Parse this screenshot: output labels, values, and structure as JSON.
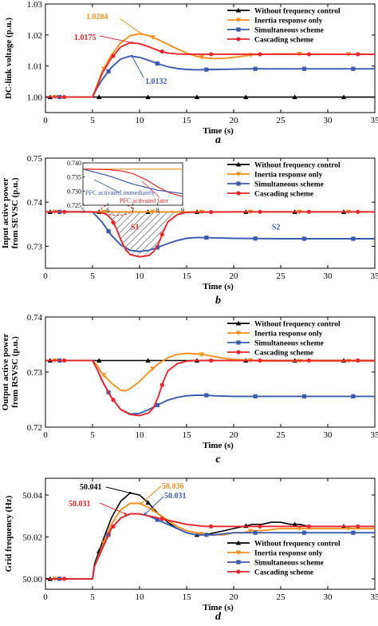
{
  "colors": {
    "without": "#000000",
    "inertia": "#f5901e",
    "simultaneous": "#3a5bb0",
    "cascading": "#e8262a",
    "hatch": "#555555"
  },
  "legend_labels": [
    "Without frequency control",
    "Inertia response only",
    "Simultaneous scheme",
    "Cascading scheme"
  ],
  "chart_data": [
    {
      "panel": "a",
      "type": "line",
      "xlabel": "Time (s)",
      "ylabel": "DC-link voltage (p.u.)",
      "xlim": [
        0,
        35
      ],
      "ylim": [
        0.995,
        1.03
      ],
      "xticks": [
        0,
        5,
        10,
        15,
        20,
        25,
        30,
        35
      ],
      "yticks": [
        1.0,
        1.01,
        1.02,
        1.03
      ],
      "ytick_labels": [
        "1.00",
        "1.01",
        "1.02",
        "1.03"
      ],
      "legend_position": "top-right",
      "annotations": [
        {
          "text": "1.0204",
          "color": "inertia"
        },
        {
          "text": "1.0175",
          "color": "cascading"
        },
        {
          "text": "1.0132",
          "color": "simultaneous"
        }
      ],
      "series": [
        {
          "name": "Without frequency control",
          "color": "without",
          "marker": "triangle-up",
          "x": [
            0,
            5,
            35
          ],
          "y": [
            1.0,
            1.0,
            1.0
          ]
        },
        {
          "name": "Inertia response only",
          "color": "inertia",
          "marker": "triangle-down",
          "x": [
            0,
            5,
            5.5,
            6,
            7,
            8,
            9,
            10,
            11,
            12,
            13,
            14,
            15,
            16,
            17,
            18,
            19,
            20,
            21,
            22,
            23,
            24,
            25,
            27,
            30,
            35
          ],
          "y": [
            1.0,
            1.0,
            1.004,
            1.008,
            1.0135,
            1.0175,
            1.0198,
            1.0204,
            1.0198,
            1.0185,
            1.017,
            1.0155,
            1.0142,
            1.0132,
            1.0126,
            1.0124,
            1.0125,
            1.0128,
            1.0132,
            1.0136,
            1.0138,
            1.0139,
            1.0139,
            1.0139,
            1.0138,
            1.0138
          ]
        },
        {
          "name": "Simultaneous scheme",
          "color": "simultaneous",
          "marker": "square",
          "x": [
            0,
            5,
            5.5,
            6,
            7,
            8,
            9,
            10,
            11,
            12,
            13,
            14,
            15,
            16,
            18,
            20,
            22,
            25,
            30,
            35
          ],
          "y": [
            1.0,
            1.0,
            1.003,
            1.0055,
            1.0095,
            1.0123,
            1.0132,
            1.0128,
            1.0118,
            1.0107,
            1.0098,
            1.0092,
            1.0089,
            1.0088,
            1.0089,
            1.009,
            1.0091,
            1.0091,
            1.0091,
            1.0091
          ]
        },
        {
          "name": "Cascading scheme",
          "color": "cascading",
          "marker": "circle",
          "x": [
            0,
            5,
            5.5,
            6,
            7,
            8,
            9,
            10,
            11,
            12,
            13,
            14,
            15,
            17,
            20,
            25,
            30,
            35
          ],
          "y": [
            1.0,
            1.0,
            1.0035,
            1.0075,
            1.0125,
            1.0162,
            1.0175,
            1.0172,
            1.0162,
            1.015,
            1.0142,
            1.0139,
            1.0138,
            1.0138,
            1.0138,
            1.0138,
            1.0138,
            1.0138
          ]
        }
      ]
    },
    {
      "panel": "b",
      "type": "line",
      "xlabel": "Time (s)",
      "ylabel": "Input active power from SEVSC (p.u.)",
      "ylabel_lines": [
        "Input active power",
        "from SEVSC (p.u.)"
      ],
      "xlim": [
        0,
        35
      ],
      "ylim": [
        0.725,
        0.75
      ],
      "xticks": [
        0,
        5,
        10,
        15,
        20,
        25,
        30,
        35
      ],
      "yticks": [
        0.73,
        0.74,
        0.75
      ],
      "ytick_labels": [
        "0.73",
        "0.74",
        "0.75"
      ],
      "legend_position": "top-right",
      "region_labels": [
        "S1",
        "S2"
      ],
      "inset": {
        "xlim": [
          5,
          9
        ],
        "ylim": [
          0.725,
          0.74
        ],
        "xticks": [
          5,
          6,
          7,
          8,
          9
        ],
        "yticks": [
          0.725,
          0.73,
          0.735,
          0.74
        ],
        "ytick_labels": [
          "0.725",
          "0.730",
          "0.735",
          "0.740"
        ],
        "annotations": [
          {
            "text": "PFC activated immediately",
            "color": "simultaneous"
          },
          {
            "text": "PFC activated later",
            "color": "cascading"
          }
        ]
      },
      "series": [
        {
          "name": "Without frequency control",
          "color": "without",
          "marker": "triangle-up",
          "x": [
            0,
            35
          ],
          "y": [
            0.7378,
            0.7378
          ]
        },
        {
          "name": "Inertia response only",
          "color": "inertia",
          "marker": "triangle-down",
          "x": [
            0,
            35
          ],
          "y": [
            0.7378,
            0.7378
          ]
        },
        {
          "name": "Simultaneous scheme",
          "color": "simultaneous",
          "marker": "square",
          "x": [
            0,
            5,
            6,
            7,
            8,
            9,
            10,
            11,
            12,
            13,
            14,
            15,
            16,
            18,
            20,
            25,
            30,
            35
          ],
          "y": [
            0.7378,
            0.7378,
            0.7355,
            0.7325,
            0.7303,
            0.7291,
            0.7288,
            0.7291,
            0.7298,
            0.7306,
            0.7313,
            0.7318,
            0.732,
            0.7319,
            0.7318,
            0.7317,
            0.7317,
            0.7317
          ]
        },
        {
          "name": "Cascading scheme",
          "color": "cascading",
          "marker": "circle",
          "x": [
            0,
            5,
            6,
            6.5,
            7,
            7.5,
            8,
            8.5,
            9,
            10,
            11,
            11.5,
            12,
            12.5,
            13,
            14,
            15,
            20,
            25,
            30,
            35
          ],
          "y": [
            0.7378,
            0.7378,
            0.7376,
            0.7372,
            0.7362,
            0.7342,
            0.7315,
            0.7293,
            0.7281,
            0.7276,
            0.7279,
            0.7288,
            0.7305,
            0.7332,
            0.7355,
            0.7372,
            0.7377,
            0.7378,
            0.7378,
            0.7378,
            0.7378
          ]
        }
      ]
    },
    {
      "panel": "c",
      "type": "line",
      "xlabel": "Time (s)",
      "ylabel": "Output active power from RSVSC (p.u.)",
      "ylabel_lines": [
        "Output active power",
        "from RSVSC (p.u.)"
      ],
      "xlim": [
        0,
        35
      ],
      "ylim": [
        0.72,
        0.74
      ],
      "xticks": [
        0,
        5,
        10,
        15,
        20,
        25,
        30,
        35
      ],
      "yticks": [
        0.72,
        0.73,
        0.74
      ],
      "ytick_labels": [
        "0.72",
        "0.73",
        "0.74"
      ],
      "legend_position": "top-right",
      "series": [
        {
          "name": "Without frequency control",
          "color": "without",
          "marker": "triangle-up",
          "x": [
            0,
            35
          ],
          "y": [
            0.7321,
            0.7321
          ]
        },
        {
          "name": "Inertia response only",
          "color": "inertia",
          "marker": "triangle-down",
          "x": [
            0,
            5,
            5.5,
            6,
            7,
            8,
            8.5,
            9,
            10,
            11,
            12,
            13,
            14,
            15,
            16,
            17,
            18,
            19,
            20,
            21,
            22,
            23,
            25,
            30,
            35
          ],
          "y": [
            0.7321,
            0.7321,
            0.7312,
            0.7298,
            0.728,
            0.7267,
            0.7266,
            0.727,
            0.7283,
            0.73,
            0.7315,
            0.7326,
            0.7332,
            0.7334,
            0.7333,
            0.7331,
            0.7328,
            0.7325,
            0.7323,
            0.7322,
            0.7321,
            0.732,
            0.732,
            0.732,
            0.732
          ]
        },
        {
          "name": "Simultaneous scheme",
          "color": "simultaneous",
          "marker": "square",
          "x": [
            0,
            5,
            5.5,
            6,
            7,
            8,
            9,
            10,
            11,
            12,
            13,
            14,
            15,
            16,
            17,
            18,
            20,
            25,
            30,
            35
          ],
          "y": [
            0.7321,
            0.7321,
            0.7305,
            0.7285,
            0.7254,
            0.7232,
            0.7224,
            0.7225,
            0.7232,
            0.7241,
            0.7249,
            0.7254,
            0.7257,
            0.7258,
            0.7258,
            0.7257,
            0.7256,
            0.7256,
            0.7256,
            0.7256
          ]
        },
        {
          "name": "Cascading scheme",
          "color": "cascading",
          "marker": "circle",
          "x": [
            0,
            5,
            5.5,
            6,
            7,
            8,
            9,
            10,
            11,
            11.5,
            12,
            12.5,
            13,
            14,
            15,
            16,
            18,
            20,
            25,
            30,
            35
          ],
          "y": [
            0.7321,
            0.7321,
            0.7305,
            0.7285,
            0.7254,
            0.7232,
            0.7223,
            0.7221,
            0.7226,
            0.7236,
            0.7256,
            0.7282,
            0.7302,
            0.7315,
            0.732,
            0.7321,
            0.7321,
            0.7321,
            0.7321,
            0.7321,
            0.7321
          ]
        }
      ]
    },
    {
      "panel": "d",
      "type": "line",
      "xlabel": "Time (s)",
      "ylabel": "Grid frequency (Hz)",
      "xlim": [
        0,
        35
      ],
      "ylim": [
        49.995,
        50.048
      ],
      "xticks": [
        0,
        5,
        10,
        15,
        20,
        25,
        30,
        35
      ],
      "yticks": [
        50.0,
        50.02,
        50.04
      ],
      "ytick_labels": [
        "50.00",
        "50.02",
        "50.04"
      ],
      "legend_position": "bottom-right",
      "annotations": [
        {
          "text": "50.041",
          "color": "without"
        },
        {
          "text": "50.036",
          "color": "inertia"
        },
        {
          "text": "50.031",
          "color": "simultaneous"
        },
        {
          "text": "50.031",
          "color": "cascading"
        }
      ],
      "series": [
        {
          "name": "Without frequency control",
          "color": "without",
          "marker": "triangle-up",
          "x": [
            0,
            5,
            5.2,
            6,
            7,
            8,
            9,
            10,
            11,
            12,
            13,
            14,
            15,
            16,
            17,
            18,
            19,
            20,
            21,
            22,
            23,
            24,
            25,
            26,
            27,
            28,
            30,
            32,
            35
          ],
          "y": [
            50.0,
            50.0,
            50.007,
            50.017,
            50.029,
            50.037,
            50.041,
            50.04,
            50.036,
            50.031,
            50.027,
            50.024,
            50.022,
            50.021,
            50.021,
            50.022,
            50.023,
            50.024,
            50.025,
            50.026,
            50.026,
            50.027,
            50.027,
            50.026,
            50.026,
            50.025,
            50.025,
            50.025,
            50.025
          ]
        },
        {
          "name": "Inertia response only",
          "color": "inertia",
          "marker": "triangle-down",
          "x": [
            0,
            5,
            5.2,
            6,
            7,
            8,
            9,
            10,
            11,
            12,
            13,
            14,
            15,
            16,
            17,
            18,
            19,
            20,
            21,
            22,
            23,
            25,
            27,
            30,
            35
          ],
          "y": [
            50.0,
            50.0,
            50.006,
            50.015,
            50.026,
            50.033,
            50.036,
            50.036,
            50.034,
            50.031,
            50.028,
            50.025,
            50.023,
            50.022,
            50.021,
            50.021,
            50.021,
            50.022,
            50.022,
            50.023,
            50.023,
            50.024,
            50.024,
            50.024,
            50.024
          ]
        },
        {
          "name": "Simultaneous scheme",
          "color": "simultaneous",
          "marker": "square",
          "x": [
            0,
            5,
            5.2,
            6,
            7,
            8,
            9,
            10,
            11,
            12,
            13,
            14,
            15,
            16,
            17,
            18,
            20,
            22,
            25,
            30,
            35
          ],
          "y": [
            50.0,
            50.0,
            50.006,
            50.014,
            50.024,
            50.029,
            50.031,
            50.031,
            50.03,
            50.028,
            50.026,
            50.024,
            50.022,
            50.021,
            50.021,
            50.021,
            50.022,
            50.022,
            50.022,
            50.022,
            50.022
          ]
        },
        {
          "name": "Cascading scheme",
          "color": "cascading",
          "marker": "circle",
          "x": [
            0,
            5,
            5.2,
            6,
            7,
            8,
            9,
            10,
            11,
            12,
            13,
            14,
            15,
            17,
            20,
            25,
            30,
            35
          ],
          "y": [
            50.0,
            50.0,
            50.006,
            50.014,
            50.024,
            50.029,
            50.031,
            50.031,
            50.03,
            50.029,
            50.028,
            50.027,
            50.026,
            50.025,
            50.025,
            50.025,
            50.025,
            50.025
          ]
        }
      ]
    }
  ]
}
